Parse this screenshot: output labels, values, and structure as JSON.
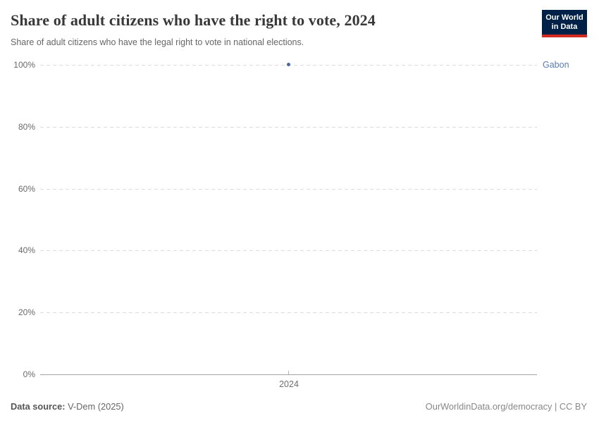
{
  "header": {
    "logo": {
      "line1": "Our World",
      "line2": "in Data"
    },
    "logo_colors": {
      "background": "#002147",
      "accent_bar": "#d42b21",
      "text": "#ffffff"
    }
  },
  "chart_data": {
    "type": "scatter",
    "title": "Share of adult citizens who have the right to vote, 2024",
    "subtitle": "Share of adult citizens who have the legal right to vote in national elections.",
    "series": [
      {
        "name": "Gabon",
        "points": [
          {
            "x": 2024,
            "y": 100
          }
        ],
        "color": "#4c6a9c"
      }
    ],
    "x_ticks": [
      "2024"
    ],
    "y_ticks": [
      "100%",
      "80%",
      "60%",
      "40%",
      "20%",
      "0%"
    ],
    "ylim": [
      0,
      100
    ],
    "xlabel": "",
    "ylabel": "",
    "grid": "horizontal-dashed",
    "legend_position": "entity-label-right"
  },
  "footer": {
    "datasource_label": "Data source:",
    "datasource_value": " V-Dem (2025)",
    "credit": "OurWorldinData.org/democracy | CC BY"
  }
}
